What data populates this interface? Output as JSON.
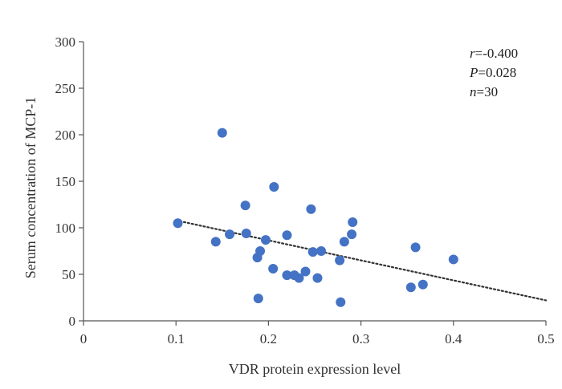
{
  "chart_data": {
    "type": "scatter",
    "title": "",
    "xlabel": "VDR protein expression level",
    "ylabel": "Serum concentration of MCP-1",
    "xlim": [
      0,
      0.5
    ],
    "ylim": [
      0,
      300
    ],
    "x_ticks": [
      "0",
      "0.1",
      "0.2",
      "0.3",
      "0.4",
      "0.5"
    ],
    "y_ticks": [
      "0",
      "50",
      "100",
      "150",
      "200",
      "250",
      "300"
    ],
    "grid": false,
    "legend": "none",
    "marker_color": "#4472C4",
    "trendline": {
      "style": "dotted",
      "color": "#333333",
      "x": [
        0.1,
        0.5
      ],
      "y": [
        108,
        22
      ]
    },
    "annotations": [
      {
        "var": "r",
        "text": "=-0.400"
      },
      {
        "var": "P",
        "text": "=0.028"
      },
      {
        "var": "n",
        "text": "=30"
      }
    ],
    "points": [
      {
        "x": 0.102,
        "y": 105
      },
      {
        "x": 0.143,
        "y": 85
      },
      {
        "x": 0.15,
        "y": 202
      },
      {
        "x": 0.158,
        "y": 93
      },
      {
        "x": 0.175,
        "y": 124
      },
      {
        "x": 0.176,
        "y": 94
      },
      {
        "x": 0.188,
        "y": 68
      },
      {
        "x": 0.189,
        "y": 24
      },
      {
        "x": 0.191,
        "y": 75
      },
      {
        "x": 0.197,
        "y": 87
      },
      {
        "x": 0.205,
        "y": 56
      },
      {
        "x": 0.206,
        "y": 144
      },
      {
        "x": 0.22,
        "y": 92
      },
      {
        "x": 0.22,
        "y": 49
      },
      {
        "x": 0.228,
        "y": 49
      },
      {
        "x": 0.233,
        "y": 46
      },
      {
        "x": 0.24,
        "y": 53
      },
      {
        "x": 0.246,
        "y": 120
      },
      {
        "x": 0.248,
        "y": 74
      },
      {
        "x": 0.253,
        "y": 46
      },
      {
        "x": 0.257,
        "y": 75
      },
      {
        "x": 0.277,
        "y": 65
      },
      {
        "x": 0.278,
        "y": 20
      },
      {
        "x": 0.282,
        "y": 85
      },
      {
        "x": 0.29,
        "y": 93
      },
      {
        "x": 0.291,
        "y": 106
      },
      {
        "x": 0.354,
        "y": 36
      },
      {
        "x": 0.359,
        "y": 79
      },
      {
        "x": 0.367,
        "y": 39
      },
      {
        "x": 0.4,
        "y": 66
      }
    ]
  }
}
